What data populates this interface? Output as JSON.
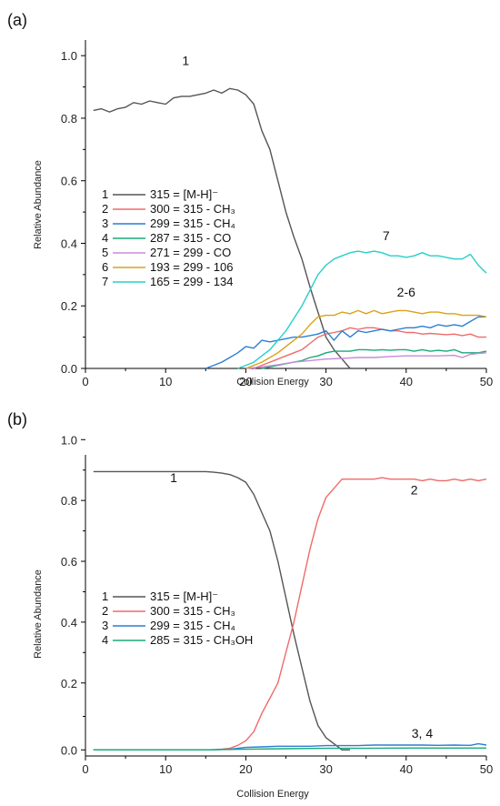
{
  "chart_data": [
    {
      "type": "line",
      "panel_label": "(a)",
      "xlabel": "Collision Energy",
      "ylabel": "Relative Abundance",
      "xlim": [
        0,
        50
      ],
      "ylim": [
        0,
        1.05
      ],
      "xticks": [
        "0",
        "10",
        "20",
        "30",
        "40",
        "50"
      ],
      "yticks": [
        "0.0",
        "0.2",
        "0.4",
        "0.6",
        "0.8",
        "1.0"
      ],
      "ytick_values": [
        0,
        0.2,
        0.4,
        0.6,
        0.8,
        1.0
      ],
      "grid": false,
      "legend_position": "left",
      "annotations": [
        {
          "text": "1",
          "x": 12.5,
          "y": 0.97
        },
        {
          "text": "7",
          "x": 37.5,
          "y": 0.41
        },
        {
          "text": "2-6",
          "x": 40,
          "y": 0.23
        }
      ],
      "series": [
        {
          "id": "1",
          "name": "315 = [M-H]⁻",
          "color": "#555555",
          "x": [
            1,
            2,
            3,
            4,
            5,
            6,
            7,
            8,
            9,
            10,
            11,
            12,
            13,
            14,
            15,
            16,
            17,
            18,
            19,
            20,
            21,
            22,
            23,
            24,
            25,
            26,
            27,
            28,
            29,
            30,
            31,
            32,
            33
          ],
          "y": [
            0.825,
            0.83,
            0.82,
            0.83,
            0.835,
            0.85,
            0.845,
            0.855,
            0.85,
            0.845,
            0.865,
            0.87,
            0.87,
            0.875,
            0.88,
            0.89,
            0.88,
            0.895,
            0.89,
            0.875,
            0.845,
            0.76,
            0.7,
            0.6,
            0.5,
            0.42,
            0.35,
            0.26,
            0.18,
            0.1,
            0.06,
            0.03,
            0.0
          ]
        },
        {
          "id": "2",
          "name": "300 = 315 - CH₃",
          "color": "#f06a6a",
          "x": [
            21,
            22,
            23,
            24,
            25,
            26,
            27,
            28,
            29,
            30,
            31,
            32,
            33,
            34,
            35,
            36,
            37,
            38,
            39,
            40,
            41,
            42,
            43,
            44,
            45,
            46,
            47,
            48,
            49,
            50
          ],
          "y": [
            0.0,
            0.01,
            0.02,
            0.03,
            0.04,
            0.05,
            0.06,
            0.08,
            0.1,
            0.11,
            0.115,
            0.12,
            0.13,
            0.125,
            0.13,
            0.13,
            0.125,
            0.12,
            0.12,
            0.115,
            0.115,
            0.11,
            0.112,
            0.11,
            0.108,
            0.11,
            0.105,
            0.11,
            0.1,
            0.1
          ]
        },
        {
          "id": "3",
          "name": "299 = 315 - CH₄",
          "color": "#2a7fd4",
          "x": [
            15,
            16,
            17,
            18,
            19,
            20,
            21,
            22,
            23,
            24,
            25,
            26,
            27,
            28,
            29,
            30,
            31,
            32,
            33,
            34,
            35,
            36,
            37,
            38,
            39,
            40,
            41,
            42,
            43,
            44,
            45,
            46,
            47,
            48,
            49,
            50
          ],
          "y": [
            0.0,
            0.01,
            0.02,
            0.035,
            0.05,
            0.07,
            0.065,
            0.09,
            0.085,
            0.09,
            0.095,
            0.1,
            0.1,
            0.105,
            0.11,
            0.12,
            0.09,
            0.12,
            0.1,
            0.12,
            0.115,
            0.12,
            0.125,
            0.12,
            0.125,
            0.13,
            0.13,
            0.135,
            0.13,
            0.14,
            0.135,
            0.14,
            0.135,
            0.15,
            0.165,
            0.165
          ]
        },
        {
          "id": "4",
          "name": "287 = 315 - CO",
          "color": "#1aa87a",
          "x": [
            22,
            23,
            24,
            25,
            26,
            27,
            28,
            29,
            30,
            31,
            32,
            33,
            34,
            35,
            36,
            37,
            38,
            39,
            40,
            41,
            42,
            43,
            44,
            45,
            46,
            47,
            48,
            49,
            50
          ],
          "y": [
            0.0,
            0.005,
            0.01,
            0.015,
            0.02,
            0.025,
            0.035,
            0.04,
            0.05,
            0.055,
            0.055,
            0.055,
            0.06,
            0.06,
            0.058,
            0.06,
            0.058,
            0.06,
            0.06,
            0.055,
            0.06,
            0.055,
            0.058,
            0.055,
            0.06,
            0.05,
            0.05,
            0.05,
            0.055
          ]
        },
        {
          "id": "5",
          "name": "271 = 299 - CO",
          "color": "#c98bd6",
          "x": [
            20,
            22,
            24,
            26,
            28,
            30,
            32,
            34,
            36,
            38,
            40,
            42,
            44,
            46,
            47,
            48,
            49,
            50
          ],
          "y": [
            0.0,
            0.005,
            0.012,
            0.02,
            0.025,
            0.03,
            0.032,
            0.035,
            0.035,
            0.038,
            0.04,
            0.04,
            0.04,
            0.042,
            0.035,
            0.045,
            0.048,
            0.05
          ]
        },
        {
          "id": "6",
          "name": "193 = 299 - 106",
          "color": "#d9a21a",
          "x": [
            20,
            21,
            22,
            23,
            24,
            25,
            26,
            27,
            28,
            29,
            30,
            31,
            32,
            33,
            34,
            35,
            36,
            37,
            38,
            39,
            40,
            41,
            42,
            43,
            44,
            45,
            46,
            47,
            48,
            49,
            50
          ],
          "y": [
            0.0,
            0.01,
            0.02,
            0.035,
            0.05,
            0.07,
            0.09,
            0.11,
            0.14,
            0.165,
            0.17,
            0.17,
            0.18,
            0.175,
            0.185,
            0.175,
            0.185,
            0.175,
            0.18,
            0.185,
            0.185,
            0.18,
            0.175,
            0.18,
            0.18,
            0.175,
            0.175,
            0.17,
            0.17,
            0.17,
            0.165
          ]
        },
        {
          "id": "7",
          "name": "165 = 299 - 134",
          "color": "#27cfc9",
          "x": [
            19,
            20,
            21,
            22,
            23,
            24,
            25,
            26,
            27,
            28,
            29,
            30,
            31,
            32,
            33,
            34,
            35,
            36,
            37,
            38,
            39,
            40,
            41,
            42,
            43,
            44,
            45,
            46,
            47,
            48,
            49,
            50
          ],
          "y": [
            0.0,
            0.01,
            0.02,
            0.04,
            0.06,
            0.09,
            0.12,
            0.16,
            0.2,
            0.25,
            0.3,
            0.33,
            0.35,
            0.36,
            0.37,
            0.375,
            0.37,
            0.375,
            0.37,
            0.36,
            0.36,
            0.355,
            0.36,
            0.37,
            0.36,
            0.36,
            0.355,
            0.35,
            0.35,
            0.365,
            0.33,
            0.305
          ]
        }
      ]
    },
    {
      "type": "line",
      "panel_label": "(b)",
      "xlabel": "Collision Energy",
      "ylabel": "Relative Abundance",
      "xlim": [
        0,
        50
      ],
      "ylim": [
        -0.04,
        0.95
      ],
      "xticks": [
        "0",
        "10",
        "20",
        "30",
        "40",
        "50"
      ],
      "yticks": [
        "0.0",
        "0.2",
        "0.4",
        "0.6",
        "0.8",
        "1.0"
      ],
      "ytick_values": [
        -0.02,
        0.2,
        0.4,
        0.6,
        0.8,
        1.0
      ],
      "grid": false,
      "legend_position": "left",
      "annotations": [
        {
          "text": "1",
          "x": 11,
          "y": 0.86
        },
        {
          "text": "2",
          "x": 41,
          "y": 0.82
        },
        {
          "text": "3, 4",
          "x": 42,
          "y": 0.02
        }
      ],
      "series": [
        {
          "id": "1",
          "name": "315 = [M-H]⁻",
          "color": "#555555",
          "x": [
            1,
            5,
            10,
            15,
            16,
            17,
            18,
            19,
            20,
            21,
            22,
            23,
            24,
            25,
            26,
            27,
            28,
            29,
            30,
            31,
            32,
            33
          ],
          "y": [
            0.895,
            0.895,
            0.895,
            0.895,
            0.893,
            0.89,
            0.885,
            0.875,
            0.86,
            0.82,
            0.76,
            0.7,
            0.6,
            0.48,
            0.36,
            0.25,
            0.14,
            0.06,
            0.02,
            0.0,
            -0.02,
            -0.02
          ]
        },
        {
          "id": "2",
          "name": "300 = 315 - CH₃",
          "color": "#f06a6a",
          "x": [
            1,
            5,
            10,
            15,
            16,
            17,
            18,
            19,
            20,
            21,
            22,
            23,
            24,
            25,
            26,
            27,
            28,
            29,
            30,
            31,
            32,
            33,
            34,
            35,
            36,
            37,
            38,
            39,
            40,
            41,
            42,
            43,
            44,
            45,
            46,
            47,
            48,
            49,
            50
          ],
          "y": [
            -0.02,
            -0.02,
            -0.02,
            -0.02,
            -0.02,
            -0.018,
            -0.015,
            -0.005,
            0.01,
            0.04,
            0.1,
            0.15,
            0.2,
            0.3,
            0.4,
            0.52,
            0.64,
            0.74,
            0.81,
            0.84,
            0.87,
            0.87,
            0.87,
            0.87,
            0.87,
            0.875,
            0.87,
            0.87,
            0.87,
            0.87,
            0.865,
            0.87,
            0.865,
            0.865,
            0.87,
            0.865,
            0.87,
            0.865,
            0.87
          ]
        },
        {
          "id": "3",
          "name": "299 = 315 - CH₄",
          "color": "#2a7fd4",
          "x": [
            1,
            10,
            15,
            18,
            20,
            22,
            24,
            26,
            28,
            30,
            32,
            34,
            36,
            38,
            40,
            42,
            44,
            46,
            48,
            49,
            50
          ],
          "y": [
            -0.02,
            -0.02,
            -0.02,
            -0.018,
            -0.012,
            -0.01,
            -0.008,
            -0.008,
            -0.008,
            -0.006,
            -0.006,
            -0.006,
            -0.004,
            -0.004,
            -0.004,
            -0.004,
            -0.005,
            -0.004,
            -0.005,
            0.0,
            -0.004
          ]
        },
        {
          "id": "4",
          "name": "285 = 315 - CH₃OH",
          "color": "#1aa87a",
          "x": [
            1,
            10,
            15,
            20,
            25,
            30,
            35,
            40,
            45,
            50
          ],
          "y": [
            -0.02,
            -0.02,
            -0.02,
            -0.018,
            -0.016,
            -0.015,
            -0.015,
            -0.014,
            -0.014,
            -0.014
          ]
        }
      ]
    }
  ]
}
